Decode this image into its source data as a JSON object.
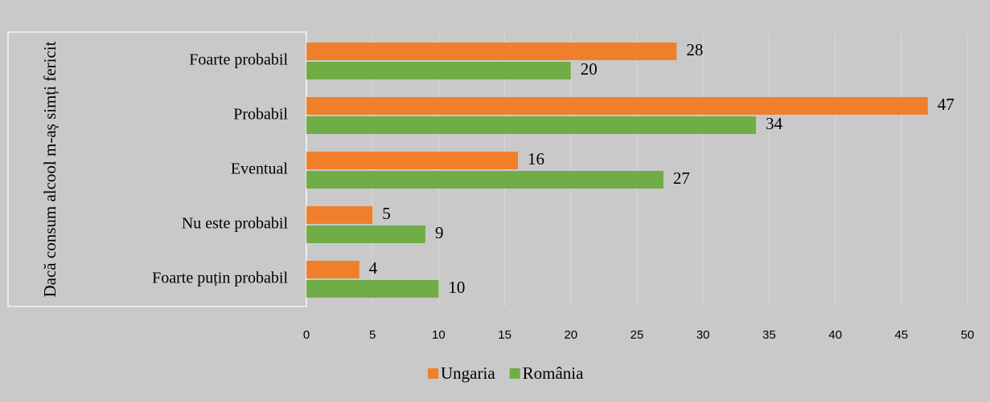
{
  "chart_data": {
    "type": "hbar",
    "y_label": "Dacă consum alcool m-aș simți fericit",
    "categories": [
      "Foarte probabil",
      "Probabil",
      "Eventual",
      "Nu este probabil",
      "Foarte puțin probabil"
    ],
    "series": [
      {
        "name": "Ungaria",
        "color": "#f07f2c",
        "values": [
          28,
          47,
          16,
          5,
          4
        ]
      },
      {
        "name": "România",
        "color": "#70ad47",
        "values": [
          20,
          34,
          27,
          9,
          10
        ]
      }
    ],
    "xlim": [
      0,
      50
    ],
    "xticks": [
      0,
      5,
      10,
      15,
      20,
      25,
      30,
      35,
      40,
      45,
      50
    ],
    "grid": true,
    "legend": "bottom"
  }
}
